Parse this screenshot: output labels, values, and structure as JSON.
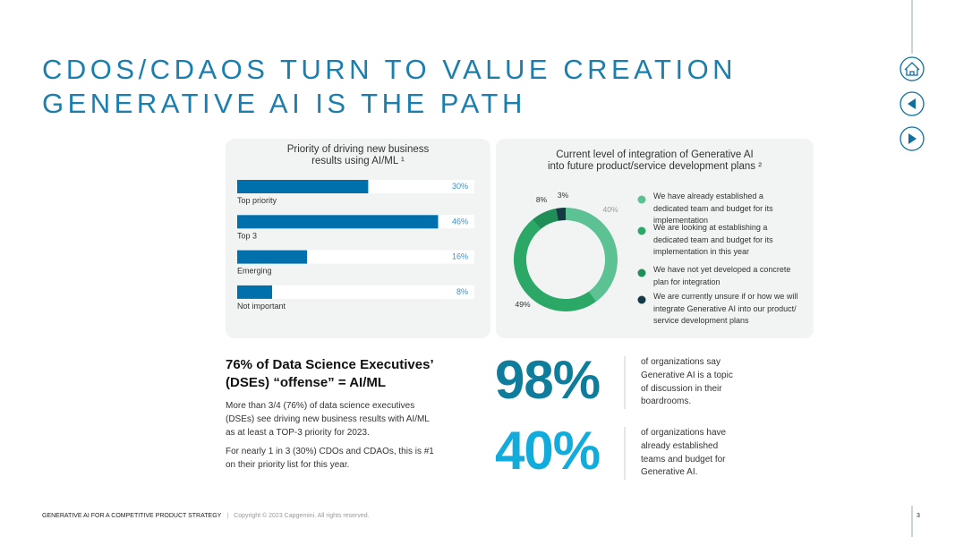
{
  "header": {
    "title_lines": [
      "CDOS/CDAOS TURN TO VALUE CREATION",
      "GENERATIVE AI IS THE PATH"
    ]
  },
  "chart_data": [
    {
      "type": "bar",
      "orientation": "horizontal",
      "title_lines": [
        "Priority of driving new business",
        "results using AI/ML ¹"
      ],
      "categories": [
        "Top priority",
        "Top 3",
        "Emerging",
        "Not important"
      ],
      "values": [
        30,
        46,
        16,
        8
      ],
      "value_labels": [
        "30%",
        "46%",
        "16%",
        "8%"
      ],
      "color": "#0070ad"
    },
    {
      "type": "donut",
      "title_lines": [
        "Current level of integration of Generative AI",
        "into future product/service development plans ²"
      ],
      "categories": [
        "We have already established a dedicated team and budget for its implementation",
        "We are looking at establishing a dedicated team and budget for its implementation in this year",
        "We have not yet developed a concrete plan for integration",
        "We are currently unsure if or how we will integrate Generative AI into our product/ service development plans"
      ],
      "values": [
        40,
        49,
        8,
        3
      ],
      "value_labels": [
        "40%",
        "49%",
        "8%",
        "3%"
      ],
      "colors": [
        "#5cc193",
        "#2ca866",
        "#1f8f57",
        "#133a45"
      ]
    }
  ],
  "insight": {
    "heading_lines": [
      "76% of Data Science Executives’",
      "(DSEs) “offense” = AI/ML"
    ],
    "paragraphs": [
      [
        "More than 3/4 (76%) of data science executives",
        "(DSEs) see driving new business results with AI/ML",
        "as at least a TOP-3 priority for 2023."
      ],
      [
        "For nearly 1 in 3 (30%) CDOs and CDAOs, this is #1",
        "on their priority list for this year."
      ]
    ]
  },
  "stats": [
    {
      "figure": "98%",
      "lines": [
        "of organizations say",
        "Generative AI is a topic",
        "of discussion in their",
        "boardrooms."
      ]
    },
    {
      "figure": "40%",
      "lines": [
        "of organizations have",
        "already established",
        "teams and budget for",
        "Generative AI."
      ]
    }
  ],
  "footer": {
    "title": "GENERATIVE AI FOR A COMPETITIVE PRODUCT STRATEGY",
    "separator": "|",
    "copyright": "Copyright © 2023 Capgemini.  All rights reserved.",
    "page": "3"
  }
}
